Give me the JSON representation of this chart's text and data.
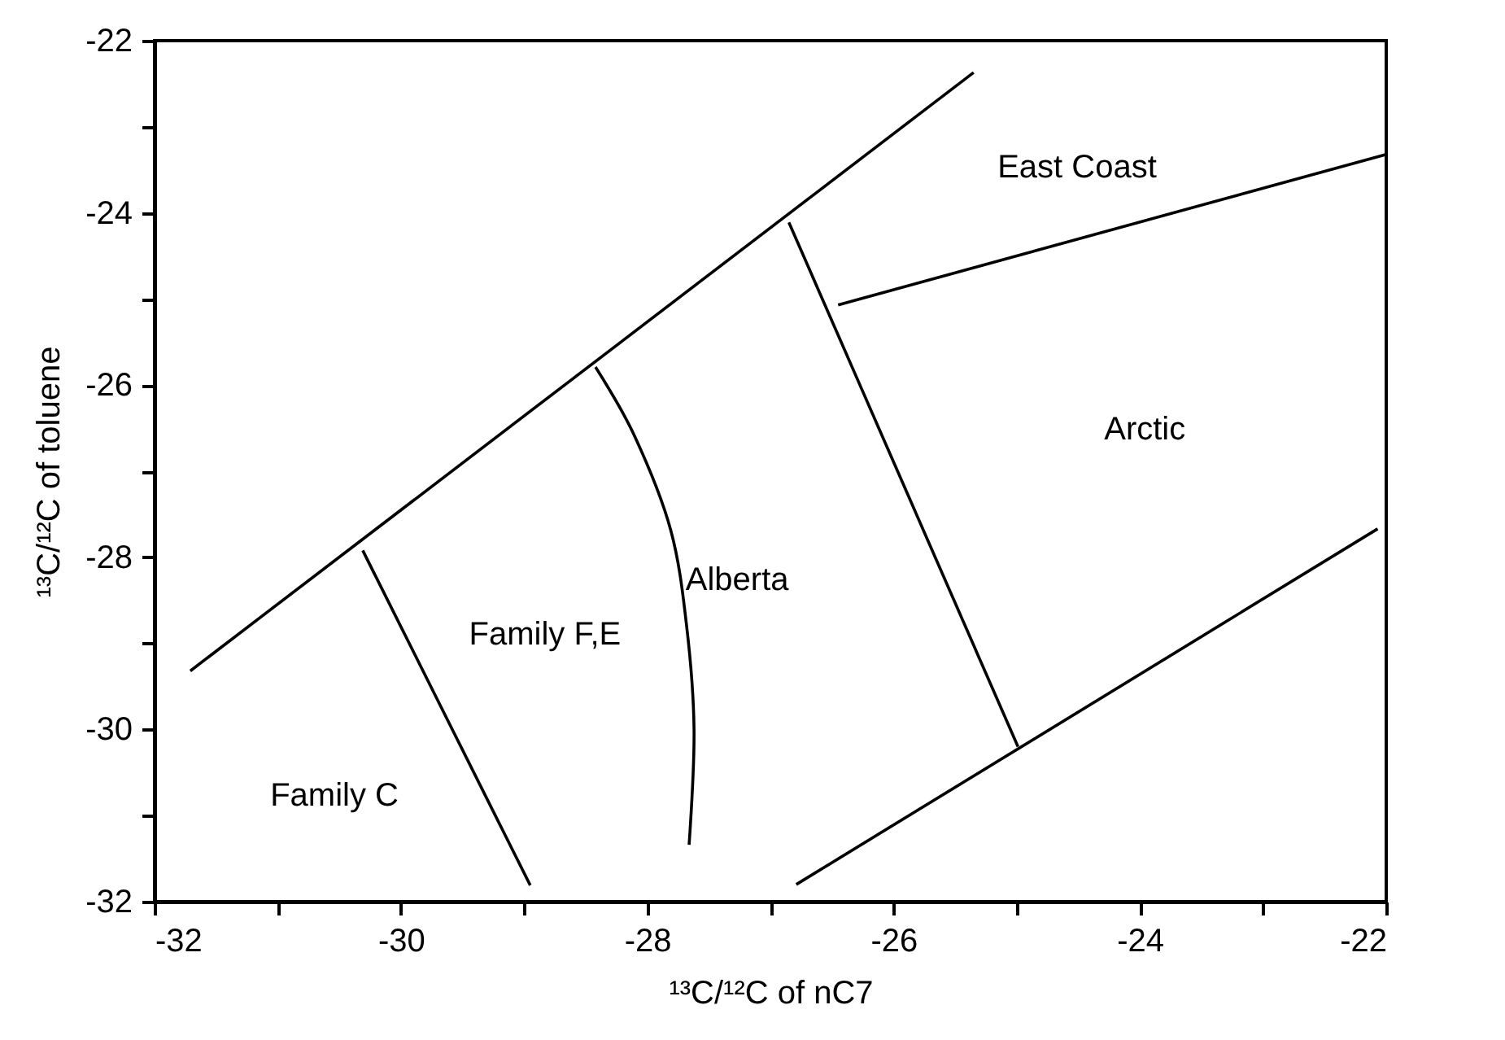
{
  "chart_data": {
    "type": "line",
    "xlabel": "¹³C/¹²C of nC7",
    "ylabel": "¹³C/¹²C of toluene",
    "xlim": [
      -32,
      -22
    ],
    "ylim": [
      -32,
      -22
    ],
    "xticks": [
      -32,
      {
        "value": -31,
        "label": null
      },
      -30,
      {
        "value": -29,
        "label": null
      },
      -28,
      {
        "value": -27,
        "label": null
      },
      -26,
      {
        "value": -25,
        "label": null
      },
      -24,
      {
        "value": -23,
        "label": null
      },
      -22
    ],
    "yticks": [
      -32,
      {
        "value": -31,
        "label": null
      },
      -30,
      {
        "value": -29,
        "label": null
      },
      -28,
      {
        "value": -27,
        "label": null
      },
      -26,
      {
        "value": -25,
        "label": null
      },
      -24,
      {
        "value": -23,
        "label": null
      },
      -22
    ],
    "grid": false,
    "legend": false,
    "marker": "none",
    "line_style": "solid",
    "series": [
      {
        "color": "#000000",
        "x": [
          -31.71,
          -25.35
        ],
        "values": [
          -29.32,
          -22.37
        ]
      },
      {
        "color": "#000000",
        "x": [
          -30.31,
          -28.95
        ],
        "values": [
          -27.92,
          -31.81
        ]
      },
      {
        "color": "#000000",
        "x": [
          -28.42,
          -28.1,
          -27.81,
          -27.68,
          -27.62,
          -27.66
        ],
        "values": [
          -25.79,
          -26.6,
          -27.68,
          -28.8,
          -30.0,
          -31.34
        ]
      },
      {
        "color": "#000000",
        "x": [
          -26.85,
          -24.99
        ],
        "values": [
          -24.11,
          -30.2
        ]
      },
      {
        "color": "#000000",
        "x": [
          -26.45,
          -22.0
        ],
        "values": [
          -25.07,
          -23.32
        ]
      },
      {
        "color": "#000000",
        "x": [
          -26.79,
          -22.07
        ],
        "values": [
          -31.8,
          -27.67
        ]
      }
    ],
    "annotations": [
      "East Coast",
      "Arctic",
      "Alberta",
      "Family F,E",
      "Family C"
    ]
  }
}
